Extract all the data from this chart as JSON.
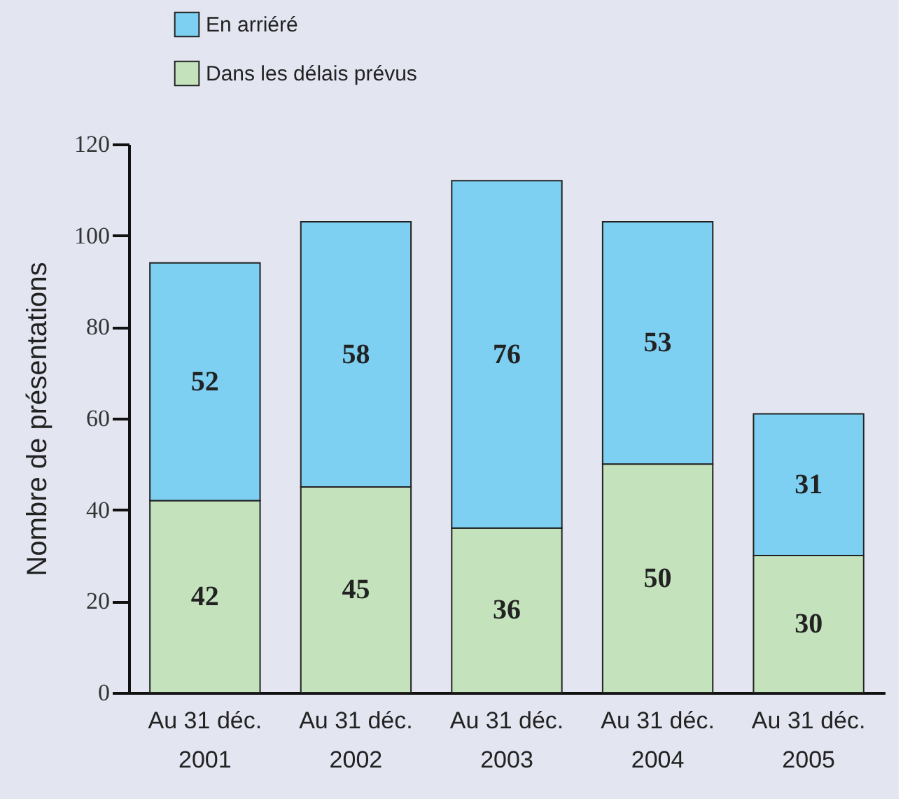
{
  "chart_data": {
    "type": "bar",
    "stacked": true,
    "ylabel": "Nombre de présentations",
    "categories": [
      "Au 31 déc. 2001",
      "Au 31 déc. 2002",
      "Au 31 déc. 2003",
      "Au 31 déc. 2004",
      "Au 31 déc. 2005"
    ],
    "series": [
      {
        "name": "Dans les délais prévus",
        "color": "#c4e3bd",
        "values": [
          42,
          45,
          36,
          50,
          30
        ]
      },
      {
        "name": "En arriéré",
        "color": "#7dd0f2",
        "values": [
          52,
          58,
          76,
          53,
          31
        ]
      }
    ],
    "ylim": [
      0,
      120
    ],
    "yticks": [
      0,
      20,
      40,
      60,
      80,
      100,
      120
    ],
    "data_labels": true,
    "legend": "top left",
    "grid": false
  }
}
